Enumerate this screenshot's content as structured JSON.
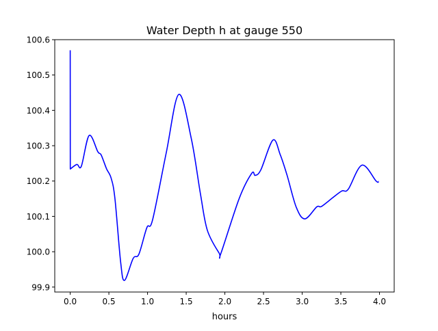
{
  "chart_data": {
    "type": "line",
    "title": "Water Depth h at gauge 550",
    "xlabel": "hours",
    "ylabel": "",
    "xlim": [
      -0.2,
      4.19
    ],
    "ylim": [
      99.886,
      100.6
    ],
    "xticks": [
      0.0,
      0.5,
      1.0,
      1.5,
      2.0,
      2.5,
      3.0,
      3.5,
      4.0
    ],
    "xtick_labels": [
      "0.0",
      "0.5",
      "1.0",
      "1.5",
      "2.0",
      "2.5",
      "3.0",
      "3.5",
      "4.0"
    ],
    "yticks": [
      99.9,
      100.0,
      100.1,
      100.2,
      100.3,
      100.4,
      100.5,
      100.6
    ],
    "ytick_labels": [
      "99.9",
      "100.0",
      "100.1",
      "100.2",
      "100.3",
      "100.4",
      "100.5",
      "100.6"
    ],
    "grid": false,
    "legend": "none",
    "series": [
      {
        "name": "h",
        "color": "#0000ff",
        "x": [
          0.0,
          0.001,
          0.086,
          0.144,
          0.245,
          0.357,
          0.4,
          0.469,
          0.528,
          0.578,
          0.652,
          0.702,
          0.814,
          0.888,
          0.991,
          1.065,
          1.242,
          1.404,
          1.566,
          1.684,
          1.773,
          1.926,
          1.95,
          2.186,
          2.348,
          2.392,
          2.466,
          2.622,
          2.717,
          2.805,
          2.923,
          3.035,
          3.189,
          3.248,
          3.396,
          3.513,
          3.596,
          3.773,
          3.956,
          3.99
        ],
        "y": [
          100.57,
          100.234,
          100.247,
          100.242,
          100.329,
          100.283,
          100.274,
          100.235,
          100.209,
          100.151,
          99.971,
          99.919,
          99.981,
          99.993,
          100.068,
          100.09,
          100.28,
          100.445,
          100.32,
          100.164,
          100.061,
          99.996,
          99.996,
          100.151,
          100.222,
          100.216,
          100.232,
          100.316,
          100.274,
          100.216,
          100.126,
          100.093,
          100.127,
          100.128,
          100.153,
          100.172,
          100.177,
          100.245,
          100.2,
          100.199
        ]
      }
    ]
  }
}
